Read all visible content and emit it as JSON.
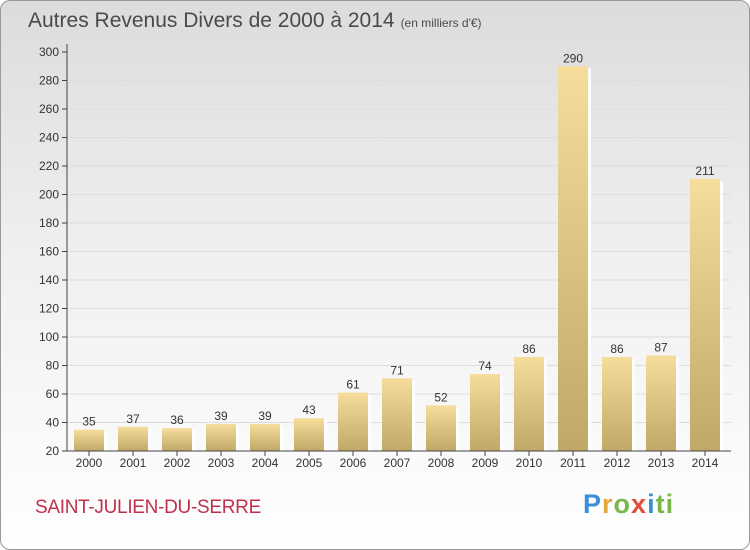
{
  "title": "Autres Revenus Divers de 2000 à 2014",
  "unit_label": "(en milliers d'€)",
  "commune": "SAINT-JULIEN-DU-SERRE",
  "brand": {
    "letters": [
      "P",
      "r",
      "o",
      "x",
      "i",
      "ti"
    ],
    "colors": [
      "#3b8fd6",
      "#e5a63a",
      "#7ab648",
      "#e54d3b",
      "#3b8fd6",
      "#7ab648"
    ]
  },
  "colors": {
    "bar_light": "#f6dd9b",
    "bar_dark": "#c2a867",
    "axis": "#444444",
    "grid": "#dddddd"
  },
  "chart_data": {
    "type": "bar",
    "title": "Autres Revenus Divers de 2000 à 2014",
    "xlabel": "",
    "ylabel": "",
    "categories": [
      "2000",
      "2001",
      "2002",
      "2003",
      "2004",
      "2005",
      "2006",
      "2007",
      "2008",
      "2009",
      "2010",
      "2011",
      "2012",
      "2013",
      "2014"
    ],
    "values": [
      35,
      37,
      36,
      39,
      39,
      43,
      61,
      71,
      52,
      74,
      86,
      290,
      86,
      87,
      211
    ],
    "ylim": [
      20,
      300
    ],
    "yticks": [
      20,
      40,
      60,
      80,
      100,
      120,
      140,
      160,
      180,
      200,
      220,
      240,
      260,
      280,
      300
    ],
    "grid": true
  }
}
